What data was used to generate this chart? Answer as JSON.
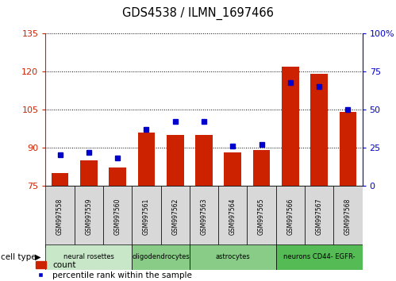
{
  "title": "GDS4538 / ILMN_1697466",
  "samples": [
    "GSM997558",
    "GSM997559",
    "GSM997560",
    "GSM997561",
    "GSM997562",
    "GSM997563",
    "GSM997564",
    "GSM997565",
    "GSM997566",
    "GSM997567",
    "GSM997568"
  ],
  "counts": [
    80,
    85,
    82,
    96,
    95,
    95,
    88,
    89,
    122,
    119,
    104
  ],
  "percentiles": [
    20,
    22,
    18,
    37,
    42,
    42,
    26,
    27,
    68,
    65,
    50
  ],
  "ylim_left": [
    75,
    135
  ],
  "ylim_right": [
    0,
    100
  ],
  "yticks_left": [
    75,
    90,
    105,
    120,
    135
  ],
  "yticks_right": [
    0,
    25,
    50,
    75,
    100
  ],
  "bar_color": "#cc2200",
  "marker_color": "#0000cc",
  "bg_color": "#ffffff",
  "left_axis_color": "#cc2200",
  "right_axis_color": "#0000cc",
  "groups": [
    {
      "label": "neural rosettes",
      "start": 0,
      "end": 2,
      "color": "#c8e6c8"
    },
    {
      "label": "oligodendrocytes",
      "start": 3,
      "end": 4,
      "color": "#88cc88"
    },
    {
      "label": "astrocytes",
      "start": 5,
      "end": 7,
      "color": "#88cc88"
    },
    {
      "label": "neurons CD44- EGFR-",
      "start": 8,
      "end": 10,
      "color": "#55bb55"
    }
  ]
}
